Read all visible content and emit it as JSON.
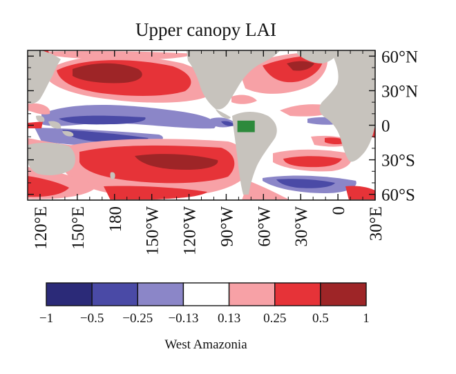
{
  "title": "Upper canopy LAI",
  "lat_labels": [
    "60°N",
    "30°N",
    "0",
    "30°S",
    "60°S"
  ],
  "lon_labels": [
    "120°E",
    "150°E",
    "180",
    "150°W",
    "120°W",
    "90°W",
    "60°W",
    "30°W",
    "0",
    "30°E"
  ],
  "colorbar": {
    "ticks": [
      "-1",
      "-0.5",
      "-0.25",
      "-0.13",
      "0.13",
      "0.25",
      "0.5",
      "1"
    ],
    "colors": [
      "#2b2a78",
      "#4a4aa6",
      "#8b86c8",
      "#ffffff",
      "#f7a1a6",
      "#e63338",
      "#9e2527"
    ],
    "caption": "West Amazonia"
  },
  "colors": {
    "land": "#c7c3bd",
    "region_box": "#2d8a3c"
  },
  "map": {
    "lon_range": [
      110,
      30
    ],
    "lat_range": [
      -65,
      65
    ],
    "region_box": {
      "lon": [
        -81,
        -67
      ],
      "lat": [
        -6,
        4
      ]
    }
  }
}
